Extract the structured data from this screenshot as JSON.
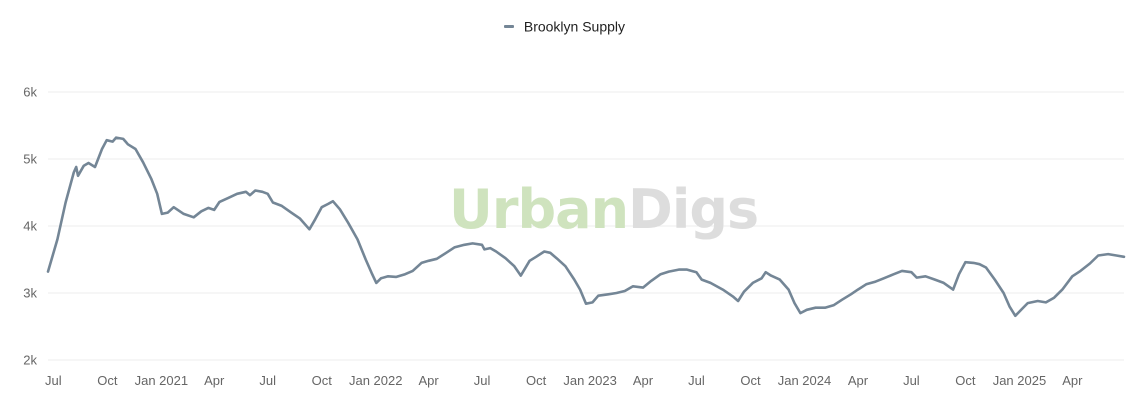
{
  "legend": {
    "series_name": "Brooklyn Supply"
  },
  "watermark": {
    "part1": "Urban",
    "part2": "Digs"
  },
  "colors": {
    "series": "#748696",
    "grid": "#eeeeee",
    "watermark_green": "#cfe3be",
    "watermark_gray": "#dddddd"
  },
  "chart_data": {
    "type": "line",
    "title": "",
    "xlabel": "",
    "ylabel": "",
    "ylim": [
      2000,
      6000
    ],
    "xlim": [
      "2020-06-22",
      "2025-06-28"
    ],
    "y_ticks": [
      {
        "value": 2000,
        "label": "2k"
      },
      {
        "value": 3000,
        "label": "3k"
      },
      {
        "value": 4000,
        "label": "4k"
      },
      {
        "value": 5000,
        "label": "5k"
      },
      {
        "value": 6000,
        "label": "6k"
      }
    ],
    "x_ticks": [
      {
        "date": "2020-07-01",
        "label": "Jul"
      },
      {
        "date": "2020-10-01",
        "label": "Oct"
      },
      {
        "date": "2021-01-01",
        "label": "Jan 2021"
      },
      {
        "date": "2021-04-01",
        "label": "Apr"
      },
      {
        "date": "2021-07-01",
        "label": "Jul"
      },
      {
        "date": "2021-10-01",
        "label": "Oct"
      },
      {
        "date": "2022-01-01",
        "label": "Jan 2022"
      },
      {
        "date": "2022-04-01",
        "label": "Apr"
      },
      {
        "date": "2022-07-01",
        "label": "Jul"
      },
      {
        "date": "2022-10-01",
        "label": "Oct"
      },
      {
        "date": "2023-01-01",
        "label": "Jan 2023"
      },
      {
        "date": "2023-04-01",
        "label": "Apr"
      },
      {
        "date": "2023-07-01",
        "label": "Jul"
      },
      {
        "date": "2023-10-01",
        "label": "Oct"
      },
      {
        "date": "2024-01-01",
        "label": "Jan 2024"
      },
      {
        "date": "2024-04-01",
        "label": "Apr"
      },
      {
        "date": "2024-07-01",
        "label": "Jul"
      },
      {
        "date": "2024-10-01",
        "label": "Oct"
      },
      {
        "date": "2025-01-01",
        "label": "Jan 2025"
      },
      {
        "date": "2025-04-01",
        "label": "Apr"
      }
    ],
    "grid": true,
    "legend_position": "top-center",
    "series": [
      {
        "name": "Brooklyn Supply",
        "points": [
          [
            "2020-06-22",
            3320
          ],
          [
            "2020-07-08",
            3800
          ],
          [
            "2020-07-22",
            4350
          ],
          [
            "2020-08-05",
            4800
          ],
          [
            "2020-08-09",
            4880
          ],
          [
            "2020-08-12",
            4750
          ],
          [
            "2020-08-22",
            4900
          ],
          [
            "2020-08-30",
            4940
          ],
          [
            "2020-09-10",
            4880
          ],
          [
            "2020-09-22",
            5150
          ],
          [
            "2020-09-30",
            5280
          ],
          [
            "2020-10-10",
            5260
          ],
          [
            "2020-10-16",
            5320
          ],
          [
            "2020-10-28",
            5300
          ],
          [
            "2020-11-05",
            5220
          ],
          [
            "2020-11-18",
            5150
          ],
          [
            "2020-12-01",
            4950
          ],
          [
            "2020-12-15",
            4700
          ],
          [
            "2020-12-25",
            4480
          ],
          [
            "2021-01-02",
            4180
          ],
          [
            "2021-01-12",
            4200
          ],
          [
            "2021-01-22",
            4280
          ],
          [
            "2021-02-08",
            4180
          ],
          [
            "2021-02-25",
            4130
          ],
          [
            "2021-03-10",
            4220
          ],
          [
            "2021-03-22",
            4270
          ],
          [
            "2021-04-01",
            4240
          ],
          [
            "2021-04-10",
            4360
          ],
          [
            "2021-04-25",
            4420
          ],
          [
            "2021-05-10",
            4480
          ],
          [
            "2021-05-25",
            4510
          ],
          [
            "2021-06-01",
            4460
          ],
          [
            "2021-06-10",
            4530
          ],
          [
            "2021-06-22",
            4510
          ],
          [
            "2021-07-01",
            4480
          ],
          [
            "2021-07-10",
            4350
          ],
          [
            "2021-07-25",
            4300
          ],
          [
            "2021-08-10",
            4200
          ],
          [
            "2021-08-25",
            4110
          ],
          [
            "2021-09-10",
            3950
          ],
          [
            "2021-09-20",
            4100
          ],
          [
            "2021-10-01",
            4280
          ],
          [
            "2021-10-12",
            4330
          ],
          [
            "2021-10-20",
            4370
          ],
          [
            "2021-11-01",
            4250
          ],
          [
            "2021-11-15",
            4050
          ],
          [
            "2021-12-01",
            3800
          ],
          [
            "2021-12-15",
            3500
          ],
          [
            "2021-12-25",
            3300
          ],
          [
            "2022-01-02",
            3150
          ],
          [
            "2022-01-10",
            3220
          ],
          [
            "2022-01-22",
            3250
          ],
          [
            "2022-02-05",
            3240
          ],
          [
            "2022-02-20",
            3280
          ],
          [
            "2022-03-05",
            3330
          ],
          [
            "2022-03-20",
            3450
          ],
          [
            "2022-04-01",
            3480
          ],
          [
            "2022-04-15",
            3510
          ],
          [
            "2022-05-01",
            3600
          ],
          [
            "2022-05-15",
            3680
          ],
          [
            "2022-06-01",
            3720
          ],
          [
            "2022-06-15",
            3740
          ],
          [
            "2022-07-01",
            3720
          ],
          [
            "2022-07-05",
            3650
          ],
          [
            "2022-07-15",
            3670
          ],
          [
            "2022-07-25",
            3620
          ],
          [
            "2022-08-10",
            3520
          ],
          [
            "2022-08-25",
            3400
          ],
          [
            "2022-09-05",
            3260
          ],
          [
            "2022-09-20",
            3480
          ],
          [
            "2022-10-01",
            3540
          ],
          [
            "2022-10-15",
            3620
          ],
          [
            "2022-10-25",
            3600
          ],
          [
            "2022-11-05",
            3520
          ],
          [
            "2022-11-20",
            3400
          ],
          [
            "2022-12-05",
            3200
          ],
          [
            "2022-12-15",
            3050
          ],
          [
            "2022-12-25",
            2840
          ],
          [
            "2023-01-05",
            2860
          ],
          [
            "2023-01-15",
            2960
          ],
          [
            "2023-02-01",
            2980
          ],
          [
            "2023-02-15",
            3000
          ],
          [
            "2023-03-01",
            3030
          ],
          [
            "2023-03-15",
            3100
          ],
          [
            "2023-04-01",
            3080
          ],
          [
            "2023-04-15",
            3180
          ],
          [
            "2023-05-01",
            3280
          ],
          [
            "2023-05-15",
            3320
          ],
          [
            "2023-06-01",
            3350
          ],
          [
            "2023-06-15",
            3350
          ],
          [
            "2023-07-01",
            3310
          ],
          [
            "2023-07-10",
            3200
          ],
          [
            "2023-07-25",
            3150
          ],
          [
            "2023-08-15",
            3050
          ],
          [
            "2023-09-01",
            2950
          ],
          [
            "2023-09-10",
            2880
          ],
          [
            "2023-09-20",
            3020
          ],
          [
            "2023-10-05",
            3150
          ],
          [
            "2023-10-20",
            3220
          ],
          [
            "2023-10-27",
            3310
          ],
          [
            "2023-11-05",
            3260
          ],
          [
            "2023-11-20",
            3200
          ],
          [
            "2023-12-05",
            3050
          ],
          [
            "2023-12-15",
            2850
          ],
          [
            "2023-12-25",
            2700
          ],
          [
            "2024-01-05",
            2750
          ],
          [
            "2024-01-20",
            2780
          ],
          [
            "2024-02-05",
            2780
          ],
          [
            "2024-02-20",
            2820
          ],
          [
            "2024-03-05",
            2900
          ],
          [
            "2024-03-20",
            2980
          ],
          [
            "2024-04-01",
            3050
          ],
          [
            "2024-04-15",
            3130
          ],
          [
            "2024-05-01",
            3170
          ],
          [
            "2024-05-15",
            3220
          ],
          [
            "2024-06-01",
            3280
          ],
          [
            "2024-06-15",
            3330
          ],
          [
            "2024-07-01",
            3310
          ],
          [
            "2024-07-10",
            3230
          ],
          [
            "2024-07-25",
            3250
          ],
          [
            "2024-08-10",
            3200
          ],
          [
            "2024-08-25",
            3150
          ],
          [
            "2024-09-10",
            3050
          ],
          [
            "2024-09-20",
            3280
          ],
          [
            "2024-10-01",
            3460
          ],
          [
            "2024-10-15",
            3450
          ],
          [
            "2024-10-25",
            3430
          ],
          [
            "2024-11-05",
            3380
          ],
          [
            "2024-11-20",
            3200
          ],
          [
            "2024-12-05",
            3000
          ],
          [
            "2024-12-15",
            2800
          ],
          [
            "2024-12-25",
            2660
          ],
          [
            "2025-01-05",
            2760
          ],
          [
            "2025-01-15",
            2850
          ],
          [
            "2025-02-01",
            2880
          ],
          [
            "2025-02-15",
            2860
          ],
          [
            "2025-03-01",
            2930
          ],
          [
            "2025-03-15",
            3050
          ],
          [
            "2025-04-01",
            3250
          ],
          [
            "2025-04-15",
            3330
          ],
          [
            "2025-05-01",
            3440
          ],
          [
            "2025-05-15",
            3560
          ],
          [
            "2025-06-01",
            3580
          ],
          [
            "2025-06-15",
            3560
          ],
          [
            "2025-06-28",
            3540
          ]
        ]
      }
    ]
  }
}
